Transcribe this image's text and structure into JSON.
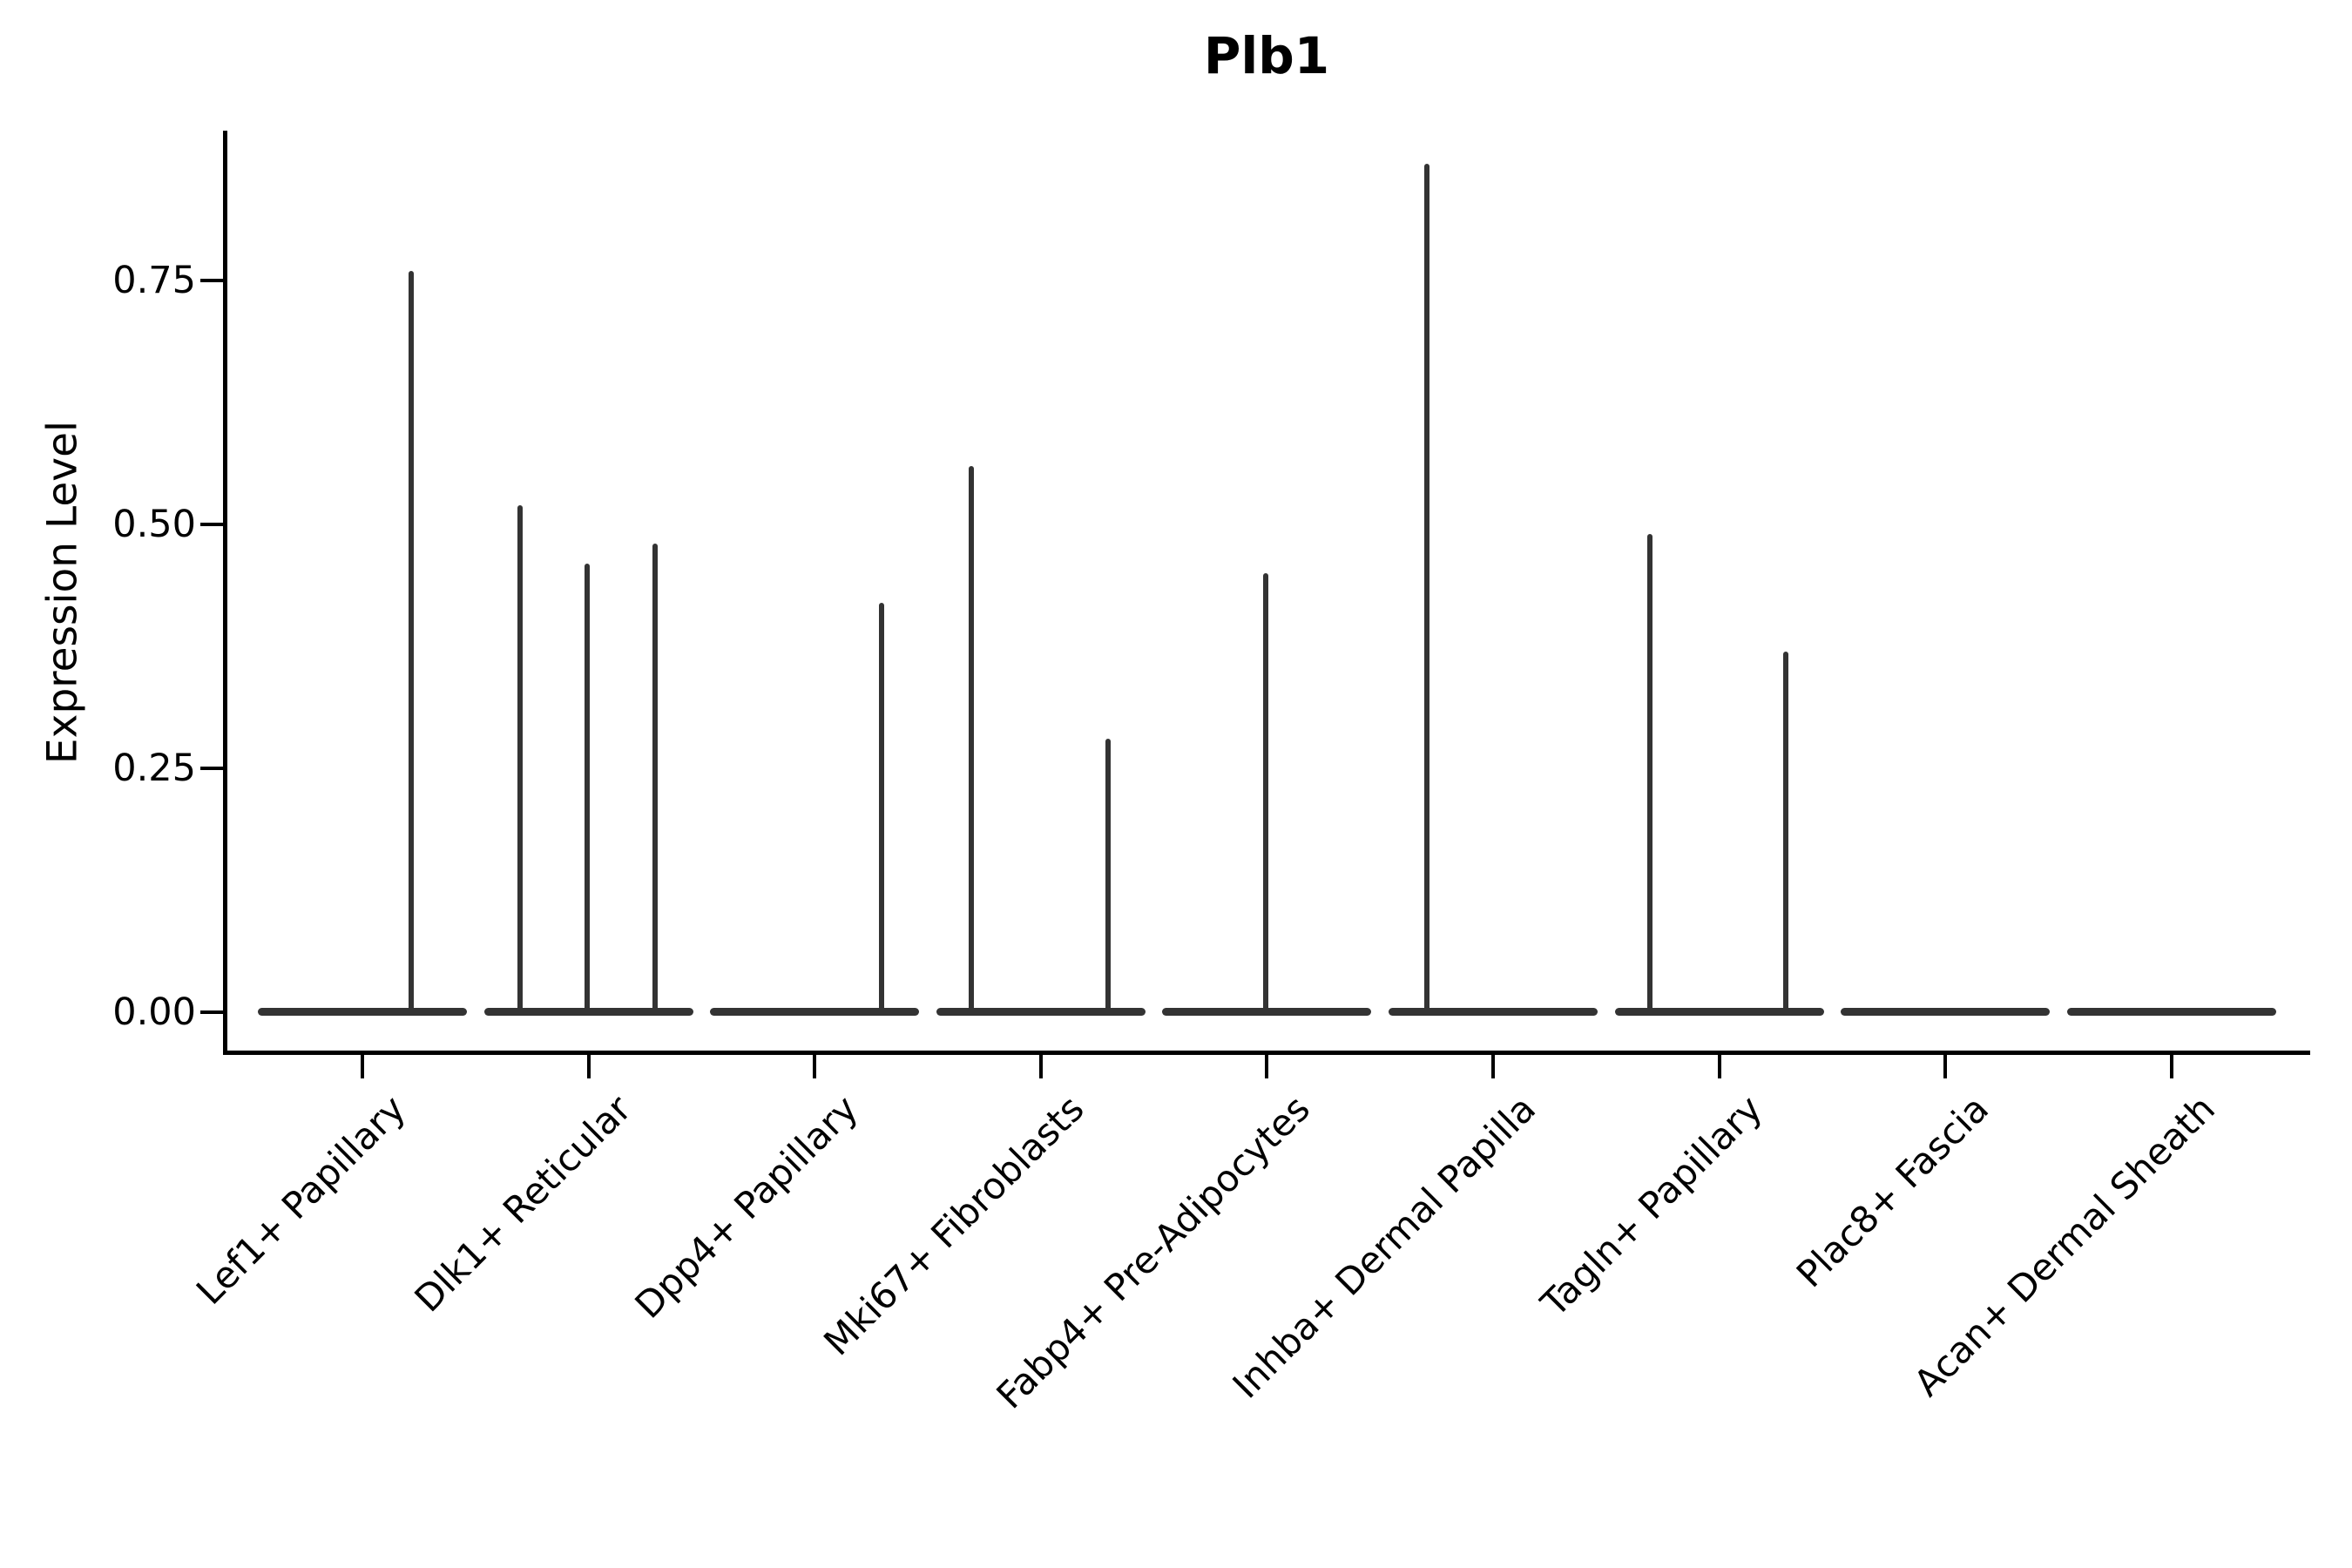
{
  "figure": {
    "title": "Plb1",
    "ylabel": "Expression Level"
  },
  "chart_data": {
    "type": "violin",
    "title": "Plb1",
    "xlabel": "",
    "ylabel": "Expression Level",
    "ylim": [
      -0.04,
      0.9
    ],
    "grid": false,
    "legend": null,
    "background": "#ffffff",
    "violin_color": "#333333",
    "axis_color": "#000000",
    "yticks": [
      {
        "value": 0.0,
        "label": "0.00"
      },
      {
        "value": 0.25,
        "label": "0.25"
      },
      {
        "value": 0.5,
        "label": "0.50"
      },
      {
        "value": 0.75,
        "label": "0.75"
      }
    ],
    "description": "Needle-style violin plot: each cell type has a flat base at expression 0 plus thin vertical spikes reaching the maximum expression of sub-violins (left / center / right dodge positions).",
    "categories": [
      {
        "label": "Lef1+ Papillary",
        "spikes": [
          {
            "position": "right",
            "dx": 56,
            "value": 0.76
          }
        ]
      },
      {
        "label": "Dlk1+ Reticular",
        "spikes": [
          {
            "position": "left",
            "dx": -79,
            "value": 0.52
          },
          {
            "position": "center",
            "dx": -2,
            "value": 0.46
          },
          {
            "position": "right",
            "dx": 76,
            "value": 0.48
          }
        ]
      },
      {
        "label": "Dpp4+ Papillary",
        "spikes": [
          {
            "position": "right",
            "dx": 77,
            "value": 0.42
          }
        ]
      },
      {
        "label": "Mki67+ Fibroblasts",
        "spikes": [
          {
            "position": "left",
            "dx": -80,
            "value": 0.56
          },
          {
            "position": "right",
            "dx": 77,
            "value": 0.28
          }
        ]
      },
      {
        "label": "Fabp4+ Pre-Adipocytes",
        "spikes": [
          {
            "position": "center",
            "dx": -1,
            "value": 0.45
          }
        ]
      },
      {
        "label": "Inhba+ Dermal Papilla",
        "spikes": [
          {
            "position": "left",
            "dx": -76,
            "value": 0.87
          }
        ]
      },
      {
        "label": "Tagln+ Papillary",
        "spikes": [
          {
            "position": "left",
            "dx": -80,
            "value": 0.49
          },
          {
            "position": "right",
            "dx": 76,
            "value": 0.37
          }
        ]
      },
      {
        "label": "Plac8+ Fascia",
        "spikes": []
      },
      {
        "label": "Acan+ Dermal Sheath",
        "spikes": []
      }
    ]
  }
}
